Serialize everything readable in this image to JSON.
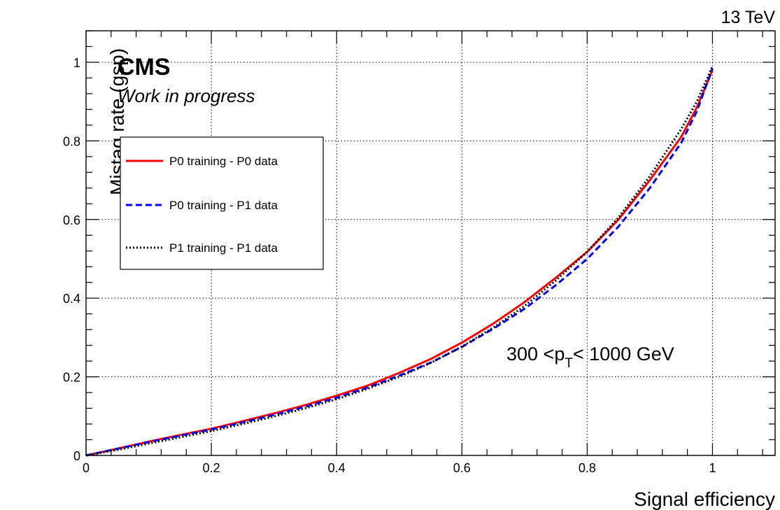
{
  "chart_data": {
    "type": "line",
    "energy_label": "13 TeV",
    "experiment_label": "CMS",
    "status_label": "Work in progress",
    "region_label": {
      "prefix": "300 <p",
      "subscript": "T",
      "suffix": "< 1000 GeV"
    },
    "xlabel": "Signal efficiency",
    "ylabel": "Mistag rate (gsp)",
    "xlim": [
      0,
      1.1
    ],
    "ylim": [
      0,
      1.08
    ],
    "xticks": [
      "0",
      "0.2",
      "0.4",
      "0.6",
      "0.8",
      "1"
    ],
    "yticks": [
      "0",
      "0.2",
      "0.4",
      "0.6",
      "0.8",
      "1"
    ],
    "grid": true,
    "legend_position": "upper-left",
    "series": [
      {
        "name": "P0 training - P0 data",
        "color": "#ff0000",
        "dash": "solid",
        "x": [
          0,
          0.05,
          0.1,
          0.15,
          0.2,
          0.25,
          0.3,
          0.35,
          0.4,
          0.45,
          0.5,
          0.55,
          0.6,
          0.65,
          0.7,
          0.75,
          0.8,
          0.85,
          0.9,
          0.95,
          0.975,
          1.0
        ],
        "y": [
          0,
          0.017,
          0.035,
          0.052,
          0.068,
          0.087,
          0.107,
          0.128,
          0.152,
          0.178,
          0.21,
          0.245,
          0.287,
          0.335,
          0.39,
          0.452,
          0.518,
          0.6,
          0.7,
          0.81,
          0.885,
          0.98
        ]
      },
      {
        "name": "P0 training - P1 data",
        "color": "#0000ff",
        "dash": "dashed",
        "x": [
          0,
          0.05,
          0.1,
          0.15,
          0.2,
          0.25,
          0.3,
          0.35,
          0.4,
          0.45,
          0.5,
          0.55,
          0.6,
          0.65,
          0.7,
          0.75,
          0.8,
          0.85,
          0.9,
          0.95,
          0.975,
          1.0
        ],
        "y": [
          0,
          0.017,
          0.034,
          0.05,
          0.066,
          0.084,
          0.103,
          0.124,
          0.147,
          0.173,
          0.203,
          0.236,
          0.276,
          0.322,
          0.373,
          0.433,
          0.5,
          0.582,
          0.68,
          0.795,
          0.875,
          0.985
        ]
      },
      {
        "name": "P1 training - P1 data",
        "color": "#000000",
        "dash": "dotted",
        "x": [
          0,
          0.05,
          0.1,
          0.15,
          0.2,
          0.25,
          0.3,
          0.35,
          0.4,
          0.45,
          0.5,
          0.55,
          0.6,
          0.65,
          0.7,
          0.75,
          0.8,
          0.85,
          0.9,
          0.95,
          0.975,
          1.0
        ],
        "y": [
          0,
          0.014,
          0.03,
          0.046,
          0.062,
          0.08,
          0.099,
          0.12,
          0.143,
          0.17,
          0.2,
          0.235,
          0.277,
          0.325,
          0.38,
          0.445,
          0.518,
          0.605,
          0.71,
          0.83,
          0.9,
          0.99
        ]
      }
    ]
  }
}
